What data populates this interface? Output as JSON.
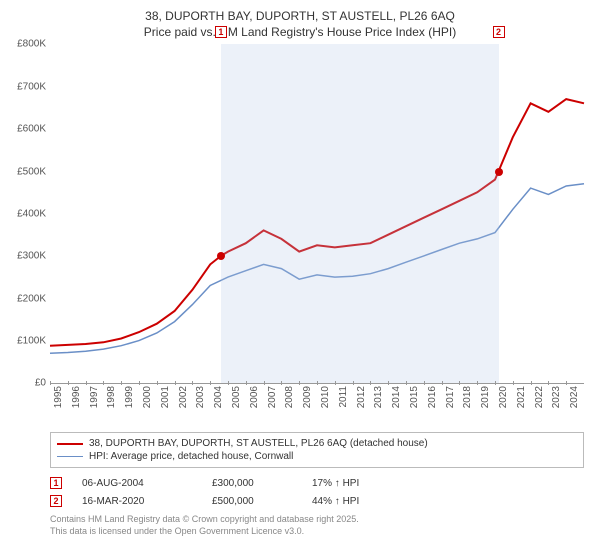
{
  "title_line1": "38, DUPORTH BAY, DUPORTH, ST AUSTELL, PL26 6AQ",
  "title_line2": "Price paid vs. HM Land Registry's House Price Index (HPI)",
  "chart": {
    "type": "line",
    "background_color": "#ffffff",
    "shade_color": "rgba(180,200,230,0.25)",
    "shade_start_year": 2004.6,
    "shade_end_year": 2020.2,
    "x_min": 1995,
    "x_max": 2025,
    "x_ticks": [
      1995,
      1996,
      1997,
      1998,
      1999,
      2000,
      2001,
      2002,
      2003,
      2004,
      2005,
      2006,
      2007,
      2008,
      2009,
      2010,
      2011,
      2012,
      2013,
      2014,
      2015,
      2016,
      2017,
      2018,
      2019,
      2020,
      2021,
      2022,
      2023,
      2024
    ],
    "x_label_fontsize": 10,
    "y_min": 0,
    "y_max": 800000,
    "y_ticks": [
      0,
      100000,
      200000,
      300000,
      400000,
      500000,
      600000,
      700000,
      800000
    ],
    "y_tick_labels": [
      "£0",
      "£100K",
      "£200K",
      "£300K",
      "£400K",
      "£500K",
      "£600K",
      "£700K",
      "£800K"
    ],
    "y_label_fontsize": 10,
    "series": [
      {
        "name": "price_paid",
        "color": "#cc0000",
        "width": 2,
        "data": [
          [
            1995,
            88000
          ],
          [
            1996,
            90000
          ],
          [
            1997,
            92000
          ],
          [
            1998,
            96000
          ],
          [
            1999,
            105000
          ],
          [
            2000,
            120000
          ],
          [
            2001,
            140000
          ],
          [
            2002,
            170000
          ],
          [
            2003,
            220000
          ],
          [
            2004,
            280000
          ],
          [
            2004.6,
            300000
          ],
          [
            2005,
            310000
          ],
          [
            2006,
            330000
          ],
          [
            2007,
            360000
          ],
          [
            2008,
            340000
          ],
          [
            2009,
            310000
          ],
          [
            2010,
            325000
          ],
          [
            2011,
            320000
          ],
          [
            2012,
            325000
          ],
          [
            2013,
            330000
          ],
          [
            2014,
            350000
          ],
          [
            2015,
            370000
          ],
          [
            2016,
            390000
          ],
          [
            2017,
            410000
          ],
          [
            2018,
            430000
          ],
          [
            2019,
            450000
          ],
          [
            2020,
            480000
          ],
          [
            2020.2,
            500000
          ],
          [
            2021,
            580000
          ],
          [
            2022,
            660000
          ],
          [
            2023,
            640000
          ],
          [
            2024,
            670000
          ],
          [
            2025,
            660000
          ]
        ]
      },
      {
        "name": "hpi",
        "color": "#6a8fc7",
        "width": 1.5,
        "data": [
          [
            1995,
            70000
          ],
          [
            1996,
            72000
          ],
          [
            1997,
            75000
          ],
          [
            1998,
            80000
          ],
          [
            1999,
            88000
          ],
          [
            2000,
            100000
          ],
          [
            2001,
            118000
          ],
          [
            2002,
            145000
          ],
          [
            2003,
            185000
          ],
          [
            2004,
            230000
          ],
          [
            2005,
            250000
          ],
          [
            2006,
            265000
          ],
          [
            2007,
            280000
          ],
          [
            2008,
            270000
          ],
          [
            2009,
            245000
          ],
          [
            2010,
            255000
          ],
          [
            2011,
            250000
          ],
          [
            2012,
            252000
          ],
          [
            2013,
            258000
          ],
          [
            2014,
            270000
          ],
          [
            2015,
            285000
          ],
          [
            2016,
            300000
          ],
          [
            2017,
            315000
          ],
          [
            2018,
            330000
          ],
          [
            2019,
            340000
          ],
          [
            2020,
            355000
          ],
          [
            2021,
            410000
          ],
          [
            2022,
            460000
          ],
          [
            2023,
            445000
          ],
          [
            2024,
            465000
          ],
          [
            2025,
            470000
          ]
        ]
      }
    ],
    "sale_markers": [
      {
        "n": "1",
        "year": 2004.6,
        "price": 300000
      },
      {
        "n": "2",
        "year": 2020.2,
        "price": 500000
      }
    ]
  },
  "legend": {
    "items": [
      {
        "color": "#cc0000",
        "width": 2,
        "label": "38, DUPORTH BAY, DUPORTH, ST AUSTELL, PL26 6AQ (detached house)"
      },
      {
        "color": "#6a8fc7",
        "width": 1.5,
        "label": "HPI: Average price, detached house, Cornwall"
      }
    ]
  },
  "sales": [
    {
      "n": "1",
      "date": "06-AUG-2004",
      "price": "£300,000",
      "pct": "17% ↑ HPI"
    },
    {
      "n": "2",
      "date": "16-MAR-2020",
      "price": "£500,000",
      "pct": "44% ↑ HPI"
    }
  ],
  "footer_line1": "Contains HM Land Registry data © Crown copyright and database right 2025.",
  "footer_line2": "This data is licensed under the Open Government Licence v3.0."
}
